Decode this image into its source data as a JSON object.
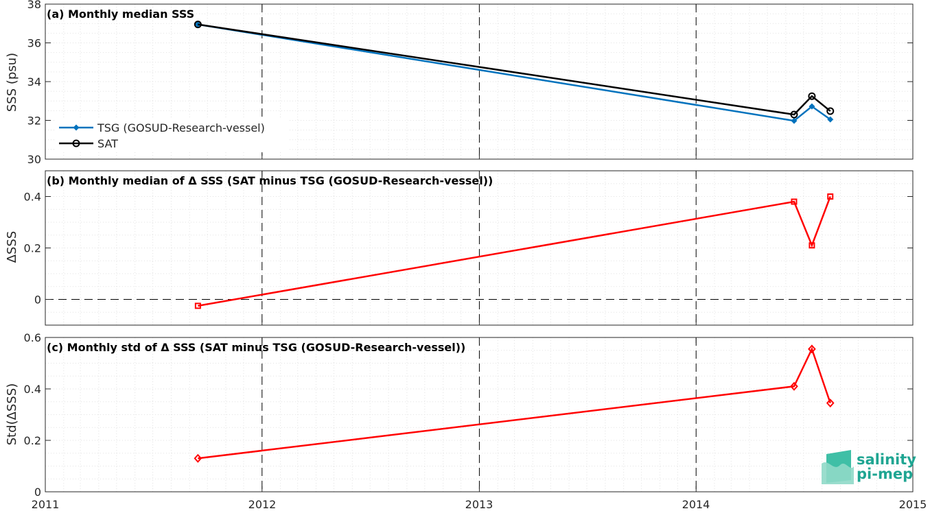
{
  "chart_data": [
    {
      "type": "line",
      "title": "(a) Monthly median SSS",
      "ylabel": "SSS (psu)",
      "xlim": [
        "2011-01-01",
        "2015-01-01"
      ],
      "ylim": [
        30,
        38
      ],
      "yticks": [
        30,
        32,
        34,
        36,
        38
      ],
      "grid": true,
      "legend_location": "lower-left",
      "series": [
        {
          "name": "TSG (GOSUD-Research-vessel)",
          "color": "#0072bd",
          "marker": "filled-diamond",
          "x": [
            "2011-09-15",
            "2014-06-15",
            "2014-07-15",
            "2014-08-15"
          ],
          "y": [
            36.95,
            31.98,
            32.72,
            32.05
          ]
        },
        {
          "name": "SAT",
          "color": "#000000",
          "marker": "open-circle",
          "x": [
            "2011-09-15",
            "2014-06-15",
            "2014-07-15",
            "2014-08-15"
          ],
          "y": [
            36.95,
            32.3,
            33.25,
            32.48
          ]
        }
      ]
    },
    {
      "type": "line",
      "title": "(b) Monthly median of Δ SSS (SAT minus TSG (GOSUD-Research-vessel))",
      "ylabel": "ΔSSS",
      "xlim": [
        "2011-01-01",
        "2015-01-01"
      ],
      "ylim": [
        -0.1,
        0.5
      ],
      "yticks": [
        0,
        0.2,
        0.4
      ],
      "zero_line": true,
      "grid": true,
      "series": [
        {
          "color": "#ff0000",
          "marker": "open-square",
          "x": [
            "2011-09-15",
            "2014-06-15",
            "2014-07-15",
            "2014-08-15"
          ],
          "y": [
            -0.025,
            0.38,
            0.21,
            0.4
          ]
        }
      ]
    },
    {
      "type": "line",
      "title": "(c) Monthly std of Δ SSS (SAT minus TSG (GOSUD-Research-vessel))",
      "ylabel": "Std(ΔSSS)",
      "xlim": [
        "2011-01-01",
        "2015-01-01"
      ],
      "ylim": [
        0,
        0.6
      ],
      "yticks": [
        0,
        0.2,
        0.4,
        0.6
      ],
      "grid": true,
      "series": [
        {
          "color": "#ff0000",
          "marker": "open-diamond",
          "x": [
            "2011-09-15",
            "2014-06-15",
            "2014-07-15",
            "2014-08-15"
          ],
          "y": [
            0.13,
            0.41,
            0.555,
            0.345
          ]
        }
      ]
    }
  ],
  "x_tick_labels": [
    "2011",
    "2012",
    "2013",
    "2014",
    "2015"
  ],
  "logo": {
    "line1": "salinity",
    "line2": "pi-mep"
  }
}
